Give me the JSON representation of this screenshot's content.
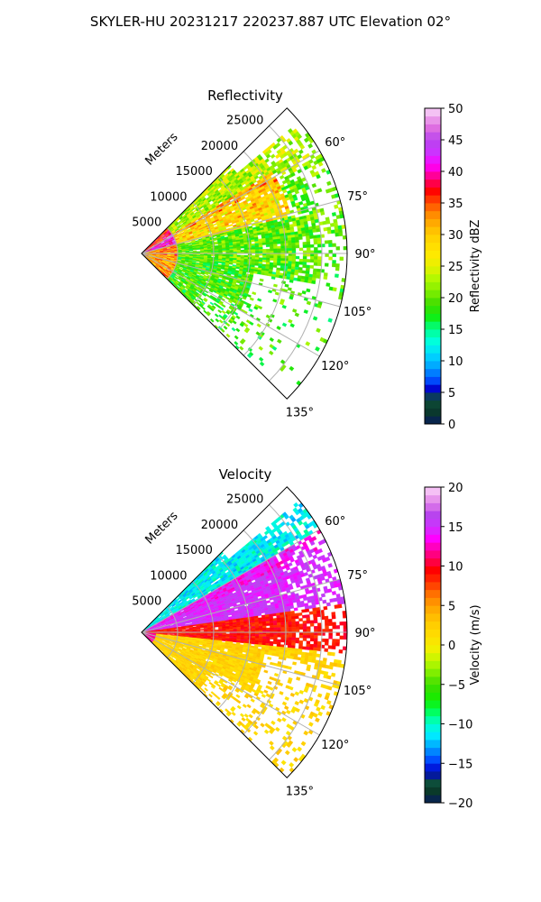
{
  "figure": {
    "title": "SKYLER-HU  20231217  220237.887 UTC Elevation 02°"
  },
  "chart_data": [
    {
      "type": "heatmap",
      "projection": "polar sector",
      "title": "Reflectivity",
      "radial_label": "Meters",
      "radial_ticks": [
        5000,
        10000,
        15000,
        20000,
        25000
      ],
      "radial_tick_labels": [
        "5000",
        "10000",
        "15000",
        "20000",
        "25000"
      ],
      "azimuth_range_deg": [
        45,
        135
      ],
      "azimuth_ticks_deg": [
        60,
        75,
        90,
        105,
        120,
        135
      ],
      "azimuth_tick_labels": [
        "60°",
        "75°",
        "90°",
        "105°",
        "120°",
        "135°"
      ],
      "max_range_m": 28500,
      "grid": true,
      "colorbar": {
        "label": "Reflectivity dBZ",
        "range": [
          0,
          50
        ],
        "ticks": [
          0,
          5,
          10,
          15,
          20,
          25,
          30,
          35,
          40,
          45,
          50
        ],
        "tick_labels": [
          "0",
          "5",
          "10",
          "15",
          "20",
          "25",
          "30",
          "35",
          "40",
          "45",
          "50"
        ]
      },
      "field_summary": "Mostly 18-30 dBZ; 30-38 dBZ near radar and along 60-75° band; sparse echoes beyond 20 km at 105-135°"
    },
    {
      "type": "heatmap",
      "projection": "polar sector",
      "title": "Velocity",
      "radial_label": "Meters",
      "radial_ticks": [
        5000,
        10000,
        15000,
        20000,
        25000
      ],
      "radial_tick_labels": [
        "5000",
        "10000",
        "15000",
        "20000",
        "25000"
      ],
      "azimuth_range_deg": [
        45,
        135
      ],
      "azimuth_ticks_deg": [
        60,
        75,
        90,
        105,
        120,
        135
      ],
      "azimuth_tick_labels": [
        "60°",
        "75°",
        "90°",
        "105°",
        "120°",
        "135°"
      ],
      "max_range_m": 28500,
      "grid": true,
      "colorbar": {
        "label": "Velocity (m/s)",
        "range": [
          -20,
          20
        ],
        "ticks": [
          -20,
          -15,
          -10,
          -5,
          0,
          5,
          10,
          15,
          20
        ],
        "tick_labels": [
          "−20",
          "−15",
          "−10",
          "−5",
          "0",
          "5",
          "10",
          "15",
          "20"
        ]
      },
      "field_summary": "-12 m/s near 60°; +12 to +16 m/s at 65-80°; +8 to +12 m/s near 85-95°; +1 to +6 m/s at 95-135°"
    }
  ],
  "colors": {
    "reflectivity_stops": [
      [
        0,
        "#071c5c"
      ],
      [
        2,
        "#0a3a2a"
      ],
      [
        4,
        "#0d4d3a"
      ],
      [
        5.5,
        "#0000cc"
      ],
      [
        7,
        "#0050ff"
      ],
      [
        9,
        "#00a0ff"
      ],
      [
        11,
        "#00d8ff"
      ],
      [
        13,
        "#00ffe0"
      ],
      [
        15,
        "#00ff90"
      ],
      [
        17,
        "#10ee10"
      ],
      [
        19,
        "#40dd00"
      ],
      [
        21,
        "#80ee00"
      ],
      [
        23,
        "#b0f800"
      ],
      [
        25,
        "#e8f000"
      ],
      [
        27,
        "#ffe800"
      ],
      [
        29,
        "#ffd800"
      ],
      [
        31,
        "#ffbc00"
      ],
      [
        33,
        "#ff9000"
      ],
      [
        35,
        "#ff5000"
      ],
      [
        37,
        "#ff0000"
      ],
      [
        39,
        "#ff0080"
      ],
      [
        41,
        "#ff00ff"
      ],
      [
        43,
        "#cc33ff"
      ],
      [
        45,
        "#b844ee"
      ],
      [
        47,
        "#e070e0"
      ],
      [
        49,
        "#f0b0f0"
      ],
      [
        50,
        "#fbe0fb"
      ]
    ],
    "velocity_stops": [
      [
        -20,
        "#071c5c"
      ],
      [
        -18.5,
        "#0a3a2a"
      ],
      [
        -17.5,
        "#0d4d3a"
      ],
      [
        -16,
        "#0000cc"
      ],
      [
        -14.5,
        "#0050ff"
      ],
      [
        -13,
        "#00a0ff"
      ],
      [
        -11.5,
        "#00e8ff"
      ],
      [
        -10,
        "#00ffd0"
      ],
      [
        -8.5,
        "#00ff60"
      ],
      [
        -7,
        "#10ee00"
      ],
      [
        -5,
        "#40dd00"
      ],
      [
        -3.5,
        "#80ee00"
      ],
      [
        -2,
        "#c0f800"
      ],
      [
        -0.5,
        "#f0f000"
      ],
      [
        1,
        "#ffe000"
      ],
      [
        3,
        "#ffc800"
      ],
      [
        5,
        "#ffa000"
      ],
      [
        6.5,
        "#ff7000"
      ],
      [
        8,
        "#ff3000"
      ],
      [
        9.5,
        "#ff0000"
      ],
      [
        11,
        "#ff0060"
      ],
      [
        12.5,
        "#ff00c0"
      ],
      [
        13.5,
        "#ff00ff"
      ],
      [
        15,
        "#cc33ff"
      ],
      [
        16.5,
        "#b844ee"
      ],
      [
        18,
        "#e080e8"
      ],
      [
        19.5,
        "#f5c0f5"
      ],
      [
        20,
        "#fbe0fb"
      ]
    ]
  }
}
